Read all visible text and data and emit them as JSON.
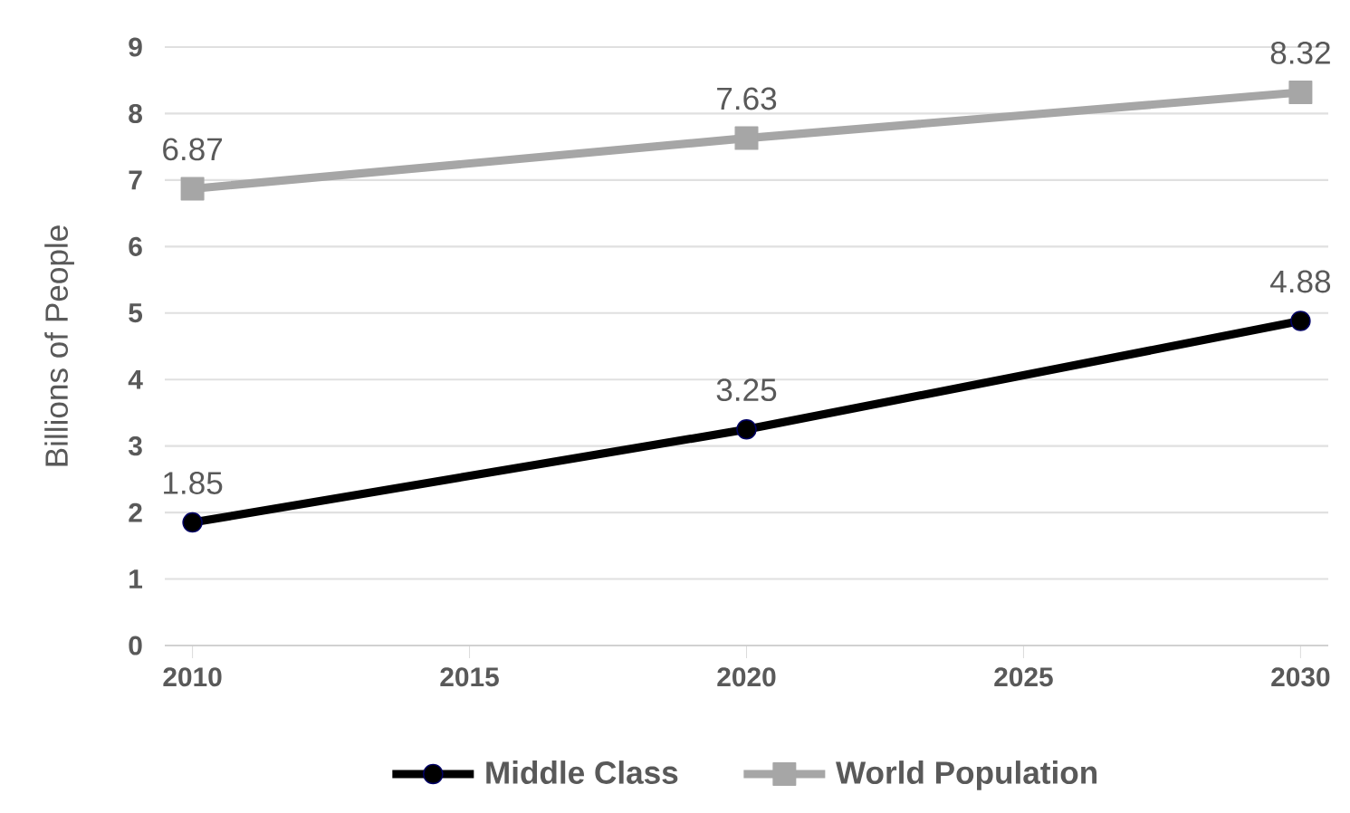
{
  "chart_data": {
    "type": "line",
    "ylabel": "Billions of People",
    "xlim": [
      2009.5,
      2030.5
    ],
    "xticks": [
      2010,
      2015,
      2020,
      2025,
      2030
    ],
    "ylim": [
      0,
      9
    ],
    "yticks": [
      0,
      1,
      2,
      3,
      4,
      5,
      6,
      7,
      8,
      9
    ],
    "grid": "y",
    "legend": "bottom",
    "data_labels": true,
    "line_style": "solid",
    "series": [
      {
        "name": "Middle Class",
        "color": "#000000",
        "marker": "circle",
        "x": [
          2010,
          2020,
          2030
        ],
        "values": [
          1.85,
          3.25,
          4.88
        ]
      },
      {
        "name": "World Population",
        "color": "#a6a6a6",
        "marker": "square",
        "x": [
          2010,
          2020,
          2030
        ],
        "values": [
          6.87,
          7.63,
          8.32
        ]
      }
    ]
  }
}
